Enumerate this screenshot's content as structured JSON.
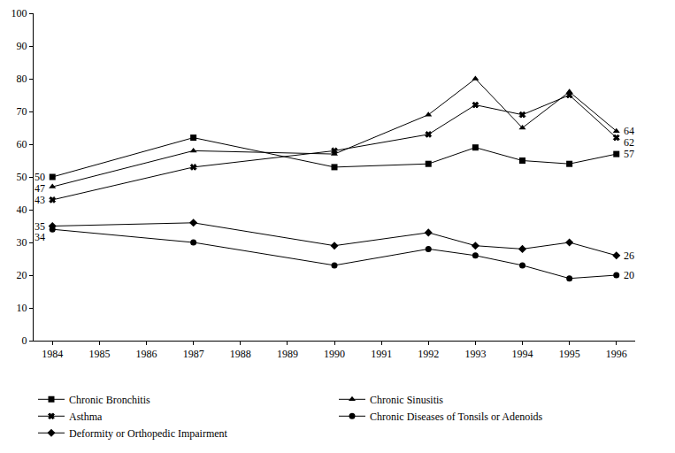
{
  "chart_data": {
    "type": "line",
    "x": [
      1984,
      1987,
      1990,
      1992,
      1993,
      1994,
      1995,
      1996
    ],
    "xlim": [
      1983.6,
      1996.4
    ],
    "xticks": [
      1984,
      1985,
      1986,
      1987,
      1988,
      1989,
      1990,
      1991,
      1992,
      1993,
      1994,
      1995,
      1996
    ],
    "ylim": [
      0,
      100
    ],
    "yticks": [
      0,
      10,
      20,
      30,
      40,
      50,
      60,
      70,
      80,
      90,
      100
    ],
    "grid": false,
    "legend": "bottom",
    "data_labels": true,
    "series": [
      {
        "name": "Chronic Bronchitis",
        "color": "#000000",
        "marker": "square",
        "values": [
          50,
          62,
          53,
          54,
          59,
          55,
          54,
          57
        ],
        "value_labels": [
          "50",
          null,
          null,
          null,
          null,
          null,
          null,
          "57"
        ]
      },
      {
        "name": "Chronic Sinusitis",
        "color": "#000000",
        "marker": "triangle-up",
        "values": [
          47,
          58,
          57,
          69,
          80,
          65,
          76,
          64
        ],
        "value_labels": [
          "47",
          null,
          null,
          null,
          null,
          null,
          null,
          "64"
        ]
      },
      {
        "name": "Asthma",
        "color": "#000000",
        "marker": "x",
        "values": [
          43,
          53,
          58,
          63,
          72,
          69,
          75,
          62
        ],
        "value_labels": [
          "43",
          null,
          null,
          null,
          null,
          null,
          null,
          "62"
        ]
      },
      {
        "name": "Chronic Diseases of Tonsils or Adenoids",
        "color": "#000000",
        "marker": "circle",
        "values": [
          34,
          30,
          23,
          28,
          26,
          23,
          19,
          20
        ],
        "value_labels": [
          "34",
          null,
          null,
          null,
          null,
          null,
          null,
          "20"
        ]
      },
      {
        "name": "Deformity or Orthopedic Impairment",
        "color": "#000000",
        "marker": "diamond",
        "values": [
          35,
          36,
          29,
          33,
          29,
          28,
          30,
          26
        ],
        "value_labels": [
          "35",
          null,
          null,
          null,
          null,
          null,
          null,
          "26"
        ]
      }
    ]
  }
}
